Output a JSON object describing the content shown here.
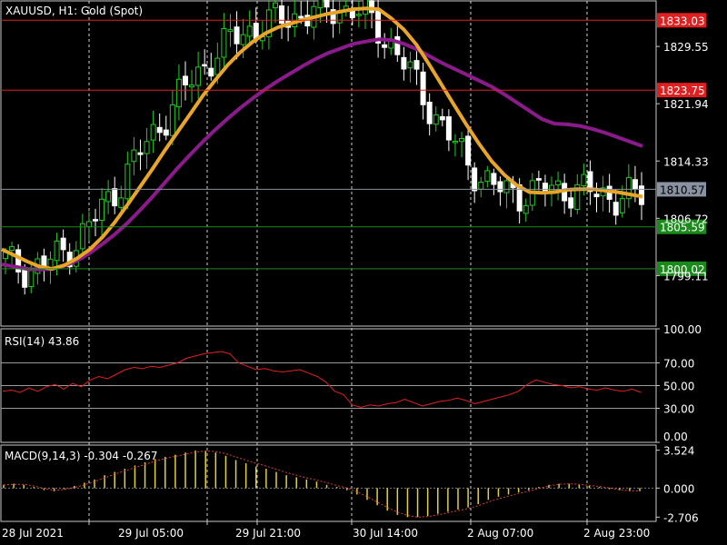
{
  "chart_data": [
    {
      "type": "candlestick",
      "title": "XAUUSD, H1:  Gold (Spot)",
      "ylim": [
        1792.4,
        1835.6
      ],
      "y_ticks": [
        1829.55,
        1821.94,
        1814.33,
        1806.72,
        1799.11
      ],
      "ma_fast": {
        "color": "#e8a52a",
        "values": [
          1802.6,
          1801.8,
          1801.0,
          1800.3,
          1800.0,
          1800.5,
          1801.4,
          1802.6,
          1804.2,
          1806.2,
          1808.5,
          1810.9,
          1813.3,
          1815.8,
          1818.2,
          1820.6,
          1823.0,
          1825.1,
          1827.1,
          1828.8,
          1830.2,
          1831.3,
          1832.1,
          1832.6,
          1833.1,
          1833.5,
          1833.9,
          1834.2,
          1834.5,
          1834.6,
          1834.5,
          1833.3,
          1831.8,
          1829.8,
          1827.2,
          1824.5,
          1821.8,
          1819.1,
          1816.6,
          1814.3,
          1812.5,
          1811.1,
          1810.2,
          1810.1,
          1810.2,
          1810.5,
          1810.6,
          1810.6,
          1810.4,
          1810.2,
          1809.9,
          1809.6
        ]
      },
      "ma_slow": {
        "color": "#8b1a8b",
        "values": [
          1800.6,
          1800.3,
          1800.0,
          1799.9,
          1800.0,
          1800.4,
          1801.1,
          1802.1,
          1803.3,
          1804.6,
          1806.1,
          1807.8,
          1809.6,
          1811.5,
          1813.4,
          1815.2,
          1816.9,
          1818.5,
          1820.0,
          1821.4,
          1822.7,
          1823.9,
          1825.0,
          1826.0,
          1827.0,
          1827.9,
          1828.7,
          1829.3,
          1829.9,
          1830.2,
          1830.5,
          1830.4,
          1829.9,
          1829.2,
          1828.3,
          1827.4,
          1826.6,
          1825.8,
          1825.0,
          1824.2,
          1823.2,
          1822.1,
          1821.0,
          1819.9,
          1819.3,
          1819.2,
          1819.0,
          1818.6,
          1818.1,
          1817.5,
          1816.9,
          1816.3
        ]
      },
      "price_lines": [
        {
          "price": 1833.03,
          "label": "1833.03",
          "color": "#e02020"
        },
        {
          "price": 1823.75,
          "label": "1823.75",
          "color": "#e02020"
        },
        {
          "price": 1810.57,
          "label": "1810.57",
          "color": "#8892a0"
        },
        {
          "price": 1805.59,
          "label": "1805.59",
          "color": "#1a8a1a"
        },
        {
          "price": 1800.02,
          "label": "1800.02",
          "color": "#1a8a1a"
        }
      ]
    },
    {
      "type": "line",
      "title": "RSI(14) 43.86",
      "ylim": [
        0,
        100
      ],
      "y_ticks": [
        "100.00",
        "70.00",
        "50.00",
        "30.00",
        "0.00"
      ],
      "levels": [
        70,
        50,
        30
      ],
      "color": "#e02020",
      "values": [
        45,
        46,
        44,
        48,
        45,
        49,
        51,
        47,
        52,
        49,
        55,
        58,
        56,
        60,
        64,
        66,
        65,
        67,
        66,
        68,
        70,
        74,
        76,
        78,
        79,
        80,
        78,
        70,
        67,
        64,
        65,
        63,
        62,
        63,
        64,
        61,
        58,
        53,
        45,
        42,
        33,
        31,
        33,
        32,
        34,
        35,
        38,
        35,
        32,
        34,
        36,
        37,
        39,
        37,
        34,
        36,
        38,
        40,
        42,
        45,
        51,
        55,
        53,
        51,
        50,
        48,
        49,
        47,
        46,
        48,
        46,
        45,
        47,
        44
      ]
    },
    {
      "type": "bar",
      "title": "MACD(9,14,3) -0.304 -0.267",
      "ylim": [
        -3.1,
        4.0
      ],
      "y_ticks": [
        "3.524",
        "0.000",
        "-2.706"
      ],
      "bar_color": "#e3d03a",
      "signal_color": "#d84040",
      "values": [
        0.3,
        0.4,
        0.3,
        0.1,
        -0.2,
        -0.3,
        -0.1,
        0.2,
        0.5,
        0.8,
        1.2,
        1.5,
        1.8,
        2.1,
        2.4,
        2.7,
        2.9,
        3.1,
        3.3,
        3.5,
        3.5,
        3.3,
        3.0,
        2.6,
        2.3,
        2.0,
        1.8,
        1.5,
        1.2,
        1.0,
        0.8,
        0.6,
        0.3,
        0.1,
        -0.2,
        -0.6,
        -1.1,
        -1.6,
        -2.1,
        -2.5,
        -2.7,
        -2.7,
        -2.6,
        -2.4,
        -2.2,
        -2.0,
        -1.8,
        -1.5,
        -1.1,
        -0.8,
        -0.6,
        -0.4,
        -0.2,
        0.1,
        0.3,
        0.4,
        0.4,
        0.3,
        0.2,
        0.1,
        -0.1,
        -0.2,
        -0.3,
        -0.3
      ],
      "signal": [
        0.3,
        0.35,
        0.35,
        0.2,
        -0.05,
        -0.2,
        -0.15,
        0.05,
        0.3,
        0.6,
        0.95,
        1.3,
        1.6,
        1.9,
        2.2,
        2.5,
        2.75,
        2.95,
        3.15,
        3.35,
        3.45,
        3.4,
        3.2,
        2.9,
        2.6,
        2.3,
        2.05,
        1.75,
        1.45,
        1.2,
        0.95,
        0.75,
        0.5,
        0.25,
        0.0,
        -0.35,
        -0.8,
        -1.3,
        -1.8,
        -2.25,
        -2.55,
        -2.7,
        -2.65,
        -2.5,
        -2.3,
        -2.1,
        -1.9,
        -1.65,
        -1.3,
        -1.0,
        -0.75,
        -0.5,
        -0.3,
        -0.05,
        0.2,
        0.35,
        0.4,
        0.35,
        0.25,
        0.15,
        0.0,
        -0.15,
        -0.25,
        -0.27
      ]
    }
  ],
  "x_axis_labels": [
    "28 Jul 2021",
    "29 Jul 05:00",
    "29 Jul 21:00",
    "30 Jul 14:00",
    "2 Aug 07:00",
    "2 Aug 23:00"
  ],
  "colors": {
    "background": "#000000",
    "text": "#ffffff",
    "frame": "#c8c8c8",
    "bull_candle": "#22cc22",
    "bear_candle": "#ffffff",
    "grid": "#9a9a9a"
  }
}
